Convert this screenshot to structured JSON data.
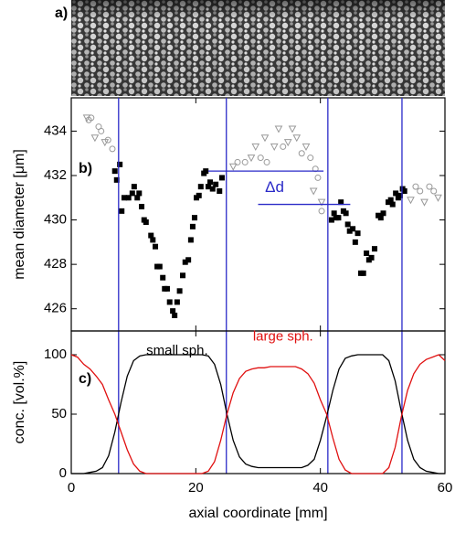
{
  "panel_a": {
    "label": "a)"
  },
  "chart_data": [
    {
      "type": "scatter",
      "label": "b)",
      "ylabel": "mean diameter [μm]",
      "xlim": [
        0,
        60
      ],
      "ylim": [
        425.0,
        435.5
      ],
      "yticks": [
        426,
        428,
        430,
        432,
        434
      ],
      "vlines": [
        7.6,
        24.9,
        41.2,
        53.1
      ],
      "vline_color": "#2a2ac8",
      "annotation": {
        "text": "Δd",
        "levels": [
          432.2,
          430.7
        ],
        "x_ranges": [
          [
            22.0,
            40.5
          ],
          [
            30.0,
            44.8
          ]
        ],
        "color": "#2a2ac8"
      },
      "series": [
        {
          "marker": "square",
          "color": "#000000",
          "x": [
            7.0,
            7.3,
            7.8,
            8.1,
            8.5,
            9.2,
            9.8,
            10.1,
            10.6,
            10.9,
            11.3,
            11.7,
            12.0,
            12.8,
            13.1,
            13.5,
            13.8,
            14.2,
            14.7,
            15.0,
            15.4,
            15.8,
            16.3,
            16.6,
            17.0,
            17.4,
            17.9,
            18.3,
            18.8,
            19.2,
            19.5,
            19.8,
            20.1,
            20.5,
            20.8,
            21.3,
            21.6,
            22.0,
            22.3,
            22.7,
            23.2,
            23.8,
            24.2,
            41.8,
            42.2,
            42.5,
            42.9,
            43.3,
            43.7,
            44.1,
            44.4,
            44.7,
            45.2,
            45.6,
            46.0,
            46.5,
            46.9,
            47.4,
            47.8,
            48.2,
            48.7,
            49.3,
            49.7,
            50.1,
            50.9,
            51.3,
            51.6,
            52.1,
            52.5,
            52.8,
            53.2,
            53.5
          ],
          "values": [
            432.2,
            431.8,
            432.5,
            430.4,
            431.0,
            431.0,
            431.2,
            431.5,
            431.0,
            431.2,
            430.6,
            430.0,
            429.9,
            429.3,
            429.1,
            428.8,
            427.9,
            427.9,
            427.4,
            426.9,
            426.9,
            426.3,
            425.9,
            425.7,
            426.3,
            426.8,
            427.5,
            428.1,
            428.2,
            429.1,
            429.7,
            430.1,
            431.0,
            431.1,
            431.5,
            432.1,
            432.2,
            431.5,
            431.7,
            431.4,
            431.6,
            431.3,
            431.9,
            430.0,
            430.3,
            430.1,
            430.1,
            430.8,
            430.4,
            430.3,
            429.8,
            429.5,
            429.6,
            429.0,
            429.4,
            427.6,
            427.6,
            428.5,
            428.2,
            428.3,
            428.7,
            430.2,
            430.1,
            430.3,
            430.8,
            430.9,
            430.7,
            431.2,
            431.0,
            431.1,
            431.4,
            431.3
          ]
        },
        {
          "marker": "circle",
          "color": "#999999",
          "x": [
            2.8,
            3.2,
            4.4,
            4.8,
            5.9,
            6.6,
            26.7,
            27.9,
            30.4,
            31.4,
            34.0,
            37.0,
            38.4,
            39.2,
            39.6,
            40.2,
            55.3,
            56.0,
            57.5,
            58.2
          ],
          "values": [
            434.5,
            434.6,
            434.2,
            434.0,
            433.6,
            433.2,
            432.6,
            432.6,
            432.8,
            432.6,
            433.3,
            433.0,
            432.8,
            432.3,
            431.9,
            430.4,
            431.5,
            431.3,
            431.5,
            431.3
          ]
        },
        {
          "marker": "triangle",
          "color": "#999999",
          "x": [
            2.5,
            3.8,
            5.4,
            26.0,
            28.9,
            29.6,
            31.1,
            32.6,
            33.3,
            34.8,
            35.5,
            36.2,
            37.7,
            38.9,
            40.2,
            54.5,
            56.7,
            58.9
          ],
          "values": [
            434.6,
            433.7,
            433.5,
            432.4,
            432.8,
            433.3,
            433.7,
            433.3,
            434.1,
            433.5,
            434.1,
            433.7,
            433.3,
            431.3,
            430.8,
            430.9,
            430.8,
            431.0
          ]
        }
      ]
    },
    {
      "type": "line",
      "label": "c)",
      "ylabel": "conc. [vol.%]",
      "xlabel": "axial coordinate [mm]",
      "xlim": [
        0,
        60
      ],
      "xticks": [
        0,
        20,
        40,
        60
      ],
      "ylim": [
        0,
        120
      ],
      "yticks": [
        0,
        50,
        100
      ],
      "x": [
        0,
        1,
        2,
        3,
        4,
        5,
        6,
        7,
        8,
        9,
        10,
        11,
        12,
        13,
        14,
        15,
        16,
        17,
        18,
        19,
        20,
        21,
        22,
        23,
        24,
        25,
        26,
        27,
        28,
        29,
        30,
        31,
        32,
        33,
        34,
        35,
        36,
        37,
        38,
        39,
        40,
        41,
        42,
        43,
        44,
        45,
        46,
        47,
        48,
        49,
        50,
        51,
        52,
        53,
        54,
        55,
        56,
        57,
        58,
        59,
        60
      ],
      "series": [
        {
          "name": "small sph.",
          "color": "#000000",
          "values": [
            0,
            0,
            0,
            1,
            2,
            5,
            15,
            35,
            60,
            82,
            95,
            99,
            100,
            100,
            100,
            100,
            100,
            100,
            100,
            100,
            100,
            100,
            99,
            92,
            75,
            50,
            28,
            14,
            8,
            6,
            5,
            5,
            5,
            5,
            5,
            5,
            5,
            5,
            7,
            12,
            28,
            48,
            70,
            88,
            97,
            99,
            100,
            100,
            100,
            100,
            100,
            95,
            78,
            52,
            28,
            12,
            5,
            2,
            1,
            0,
            0
          ]
        },
        {
          "name": "large sph.",
          "color": "#e01010",
          "values": [
            100,
            98,
            92,
            88,
            82,
            75,
            62,
            50,
            35,
            20,
            8,
            2,
            0,
            0,
            0,
            0,
            0,
            0,
            0,
            0,
            0,
            0,
            2,
            10,
            28,
            50,
            68,
            80,
            86,
            88,
            89,
            89,
            90,
            90,
            90,
            90,
            90,
            88,
            84,
            76,
            62,
            50,
            30,
            12,
            3,
            0,
            0,
            0,
            0,
            0,
            0,
            5,
            22,
            48,
            70,
            84,
            92,
            96,
            98,
            100,
            95
          ]
        }
      ],
      "label_positions": [
        [
          17.0,
          103
        ],
        [
          34.0,
          115
        ]
      ]
    }
  ]
}
